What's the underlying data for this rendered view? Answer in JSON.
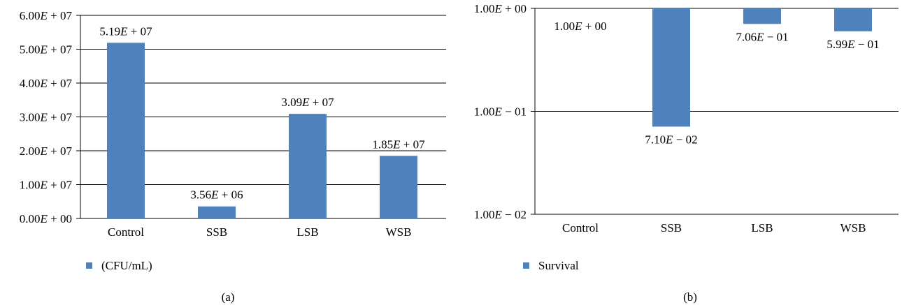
{
  "chart_data": [
    {
      "type": "bar",
      "panel_label": "(a)",
      "categories": [
        "Control",
        "SSB",
        "LSB",
        "WSB"
      ],
      "values": [
        51900000,
        3560000,
        30900000,
        18500000
      ],
      "data_labels": [
        "5.19E + 07",
        "3.56E + 06",
        "3.09E + 07",
        "1.85E + 07"
      ],
      "ylim": [
        0,
        60000000
      ],
      "y_ticks": [
        0,
        10000000,
        20000000,
        30000000,
        40000000,
        50000000,
        60000000
      ],
      "y_tick_labels": [
        "0.00E + 00",
        "1.00E + 07",
        "2.00E + 07",
        "3.00E + 07",
        "4.00E + 07",
        "5.00E + 07",
        "6.00E + 07"
      ],
      "y_scale": "linear",
      "grid": true,
      "legend": {
        "position": "bottom-left",
        "entries": [
          "(CFU/mL)"
        ]
      },
      "series": [
        {
          "name": "(CFU/mL)",
          "color": "#4f81bd",
          "values": [
            51900000,
            3560000,
            30900000,
            18500000
          ]
        }
      ]
    },
    {
      "type": "bar",
      "panel_label": "(b)",
      "categories": [
        "Control",
        "SSB",
        "LSB",
        "WSB"
      ],
      "values": [
        1.0,
        0.071,
        0.706,
        0.599
      ],
      "data_labels": [
        "1.00E + 00",
        "7.10E − 02",
        "7.06E − 01",
        "5.99E − 01"
      ],
      "ylim": [
        0.01,
        1
      ],
      "y_ticks": [
        1,
        0.1,
        0.01
      ],
      "y_tick_labels": [
        "1.00E + 00",
        "1.00E − 01",
        "1.00E − 02"
      ],
      "y_scale": "log",
      "bars_hang_from_top": true,
      "grid": true,
      "legend": {
        "position": "bottom-left",
        "entries": [
          "Survival"
        ]
      },
      "series": [
        {
          "name": "Survival",
          "color": "#4f81bd",
          "values": [
            1.0,
            0.071,
            0.706,
            0.599
          ]
        }
      ]
    }
  ]
}
